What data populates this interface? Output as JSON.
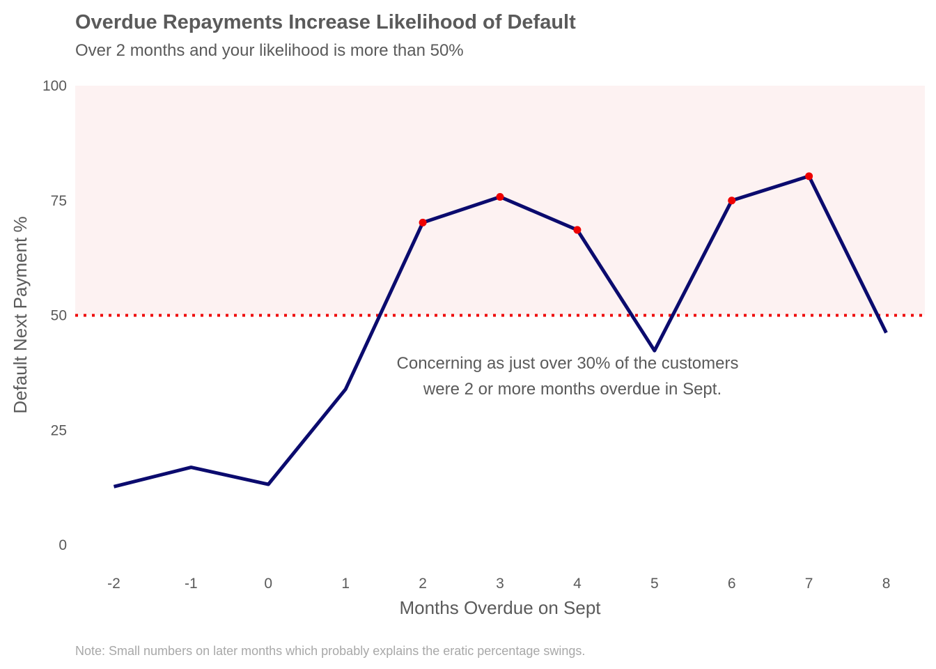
{
  "chart_data": {
    "type": "line",
    "title": "Overdue Repayments Increase Likelihood of Default",
    "subtitle": "Over 2 months and your likelihood is more than 50%",
    "xlabel": "Months Overdue on Sept",
    "ylabel": "Default Next Payment %",
    "x": [
      -2,
      -1,
      0,
      1,
      2,
      3,
      4,
      5,
      6,
      7,
      8
    ],
    "y": [
      12.7,
      16.9,
      13.2,
      33.9,
      70.2,
      75.8,
      68.6,
      42.3,
      75.0,
      80.3,
      46.2
    ],
    "highlight_x": [
      2,
      3,
      4,
      6,
      7
    ],
    "xticks": [
      -2,
      -1,
      0,
      1,
      2,
      3,
      4,
      5,
      6,
      7,
      8
    ],
    "yticks": [
      0,
      25,
      50,
      75,
      100
    ],
    "ylim": [
      0,
      100
    ],
    "threshold": 50,
    "annotation_lines": [
      "Concerning as just over 30% of the customers",
      "were 2 or more months overdue in Sept."
    ],
    "note": "Note: Small numbers on later months which probably explains the eratic percentage swings.",
    "grid": false,
    "colors": {
      "line": "#0b0b6e",
      "points": "#ee0000",
      "threshold": "#ee0000",
      "band": "#fdf2f2",
      "text": "#5a5a5a",
      "note": "#a8a8a8"
    }
  }
}
